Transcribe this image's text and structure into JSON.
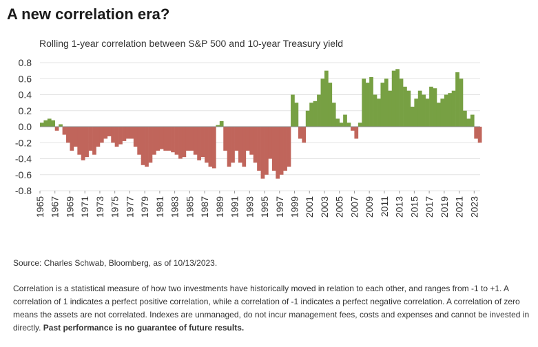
{
  "chart_data": {
    "type": "area",
    "title": "A new correlation era?",
    "subtitle": "Rolling 1-year correlation between S&P 500 and 10-year Treasury yield",
    "source": "Source: Charles Schwab, Bloomberg, as of 10/13/2023.",
    "notes": "Correlation is a statistical measure of how two investments have historically moved in relation to each other, and ranges from -1 to +1. A correlation of 1 indicates a perfect positive correlation, while a correlation of -1 indicates a perfect negative correlation. A correlation of zero means the assets are not correlated. Indexes are unmanaged, do not incur management fees, costs and expenses and cannot be invested in directly.",
    "notes_bold": "Past performance is no guarantee of future results.",
    "positive_color": "#77a043",
    "negative_color": "#c0655b",
    "grid": true,
    "x": [
      1965,
      1965.5,
      1966,
      1966.5,
      1967,
      1967.5,
      1968,
      1968.5,
      1969,
      1969.5,
      1970,
      1970.5,
      1971,
      1971.5,
      1972,
      1972.5,
      1973,
      1973.5,
      1974,
      1974.5,
      1975,
      1975.5,
      1976,
      1976.5,
      1977,
      1977.5,
      1978,
      1978.5,
      1979,
      1979.5,
      1980,
      1980.5,
      1981,
      1981.5,
      1982,
      1982.5,
      1983,
      1983.5,
      1984,
      1984.5,
      1985,
      1985.5,
      1986,
      1986.5,
      1987,
      1987.5,
      1988,
      1988.5,
      1989,
      1989.5,
      1990,
      1990.5,
      1991,
      1991.5,
      1992,
      1992.5,
      1993,
      1993.5,
      1994,
      1994.5,
      1995,
      1995.5,
      1996,
      1996.5,
      1997,
      1997.5,
      1998,
      1998.5,
      1999,
      1999.5,
      2000,
      2000.5,
      2001,
      2001.5,
      2002,
      2002.5,
      2003,
      2003.5,
      2004,
      2004.5,
      2005,
      2005.5,
      2006,
      2006.5,
      2007,
      2007.5,
      2008,
      2008.5,
      2009,
      2009.5,
      2010,
      2010.5,
      2011,
      2011.5,
      2012,
      2012.5,
      2013,
      2013.5,
      2014,
      2014.5,
      2015,
      2015.5,
      2016,
      2016.5,
      2017,
      2017.5,
      2018,
      2018.5,
      2019,
      2019.5,
      2020,
      2020.5,
      2021,
      2021.5,
      2022,
      2022.5,
      2023,
      2023.5
    ],
    "values": [
      0.05,
      0.08,
      0.1,
      0.08,
      -0.05,
      0.03,
      -0.1,
      -0.2,
      -0.3,
      -0.25,
      -0.35,
      -0.42,
      -0.38,
      -0.3,
      -0.35,
      -0.25,
      -0.2,
      -0.15,
      -0.12,
      -0.2,
      -0.25,
      -0.22,
      -0.18,
      -0.15,
      -0.15,
      -0.25,
      -0.35,
      -0.48,
      -0.5,
      -0.45,
      -0.35,
      -0.3,
      -0.28,
      -0.3,
      -0.3,
      -0.32,
      -0.35,
      -0.4,
      -0.38,
      -0.3,
      -0.3,
      -0.35,
      -0.42,
      -0.38,
      -0.45,
      -0.5,
      -0.52,
      0.02,
      0.07,
      -0.3,
      -0.5,
      -0.45,
      -0.3,
      -0.45,
      -0.5,
      -0.3,
      -0.35,
      -0.45,
      -0.55,
      -0.65,
      -0.6,
      -0.4,
      -0.55,
      -0.65,
      -0.6,
      -0.55,
      -0.5,
      0.4,
      0.3,
      -0.15,
      -0.2,
      0.2,
      0.3,
      0.32,
      0.4,
      0.6,
      0.7,
      0.55,
      0.3,
      0.1,
      0.05,
      0.15,
      0.05,
      -0.05,
      -0.15,
      0.05,
      0.6,
      0.55,
      0.62,
      0.4,
      0.35,
      0.55,
      0.6,
      0.45,
      0.7,
      0.72,
      0.6,
      0.5,
      0.45,
      0.25,
      0.35,
      0.45,
      0.4,
      0.35,
      0.5,
      0.48,
      0.3,
      0.35,
      0.4,
      0.42,
      0.45,
      0.68,
      0.6,
      0.2,
      0.1,
      0.15,
      -0.15,
      -0.2
    ],
    "xlim": [
      1965,
      2023.8
    ],
    "xticks": [
      1965,
      1967,
      1969,
      1971,
      1973,
      1975,
      1977,
      1979,
      1981,
      1983,
      1985,
      1987,
      1989,
      1991,
      1993,
      1995,
      1997,
      1999,
      2001,
      2003,
      2005,
      2007,
      2009,
      2011,
      2013,
      2015,
      2017,
      2019,
      2021,
      2023
    ],
    "ylim": [
      -0.8,
      0.8
    ],
    "yticks": [
      -0.8,
      -0.6,
      -0.4,
      -0.2,
      {
        "value": 0,
        "label": "0.0"
      },
      0.2,
      0.4,
      0.6,
      0.8
    ]
  }
}
